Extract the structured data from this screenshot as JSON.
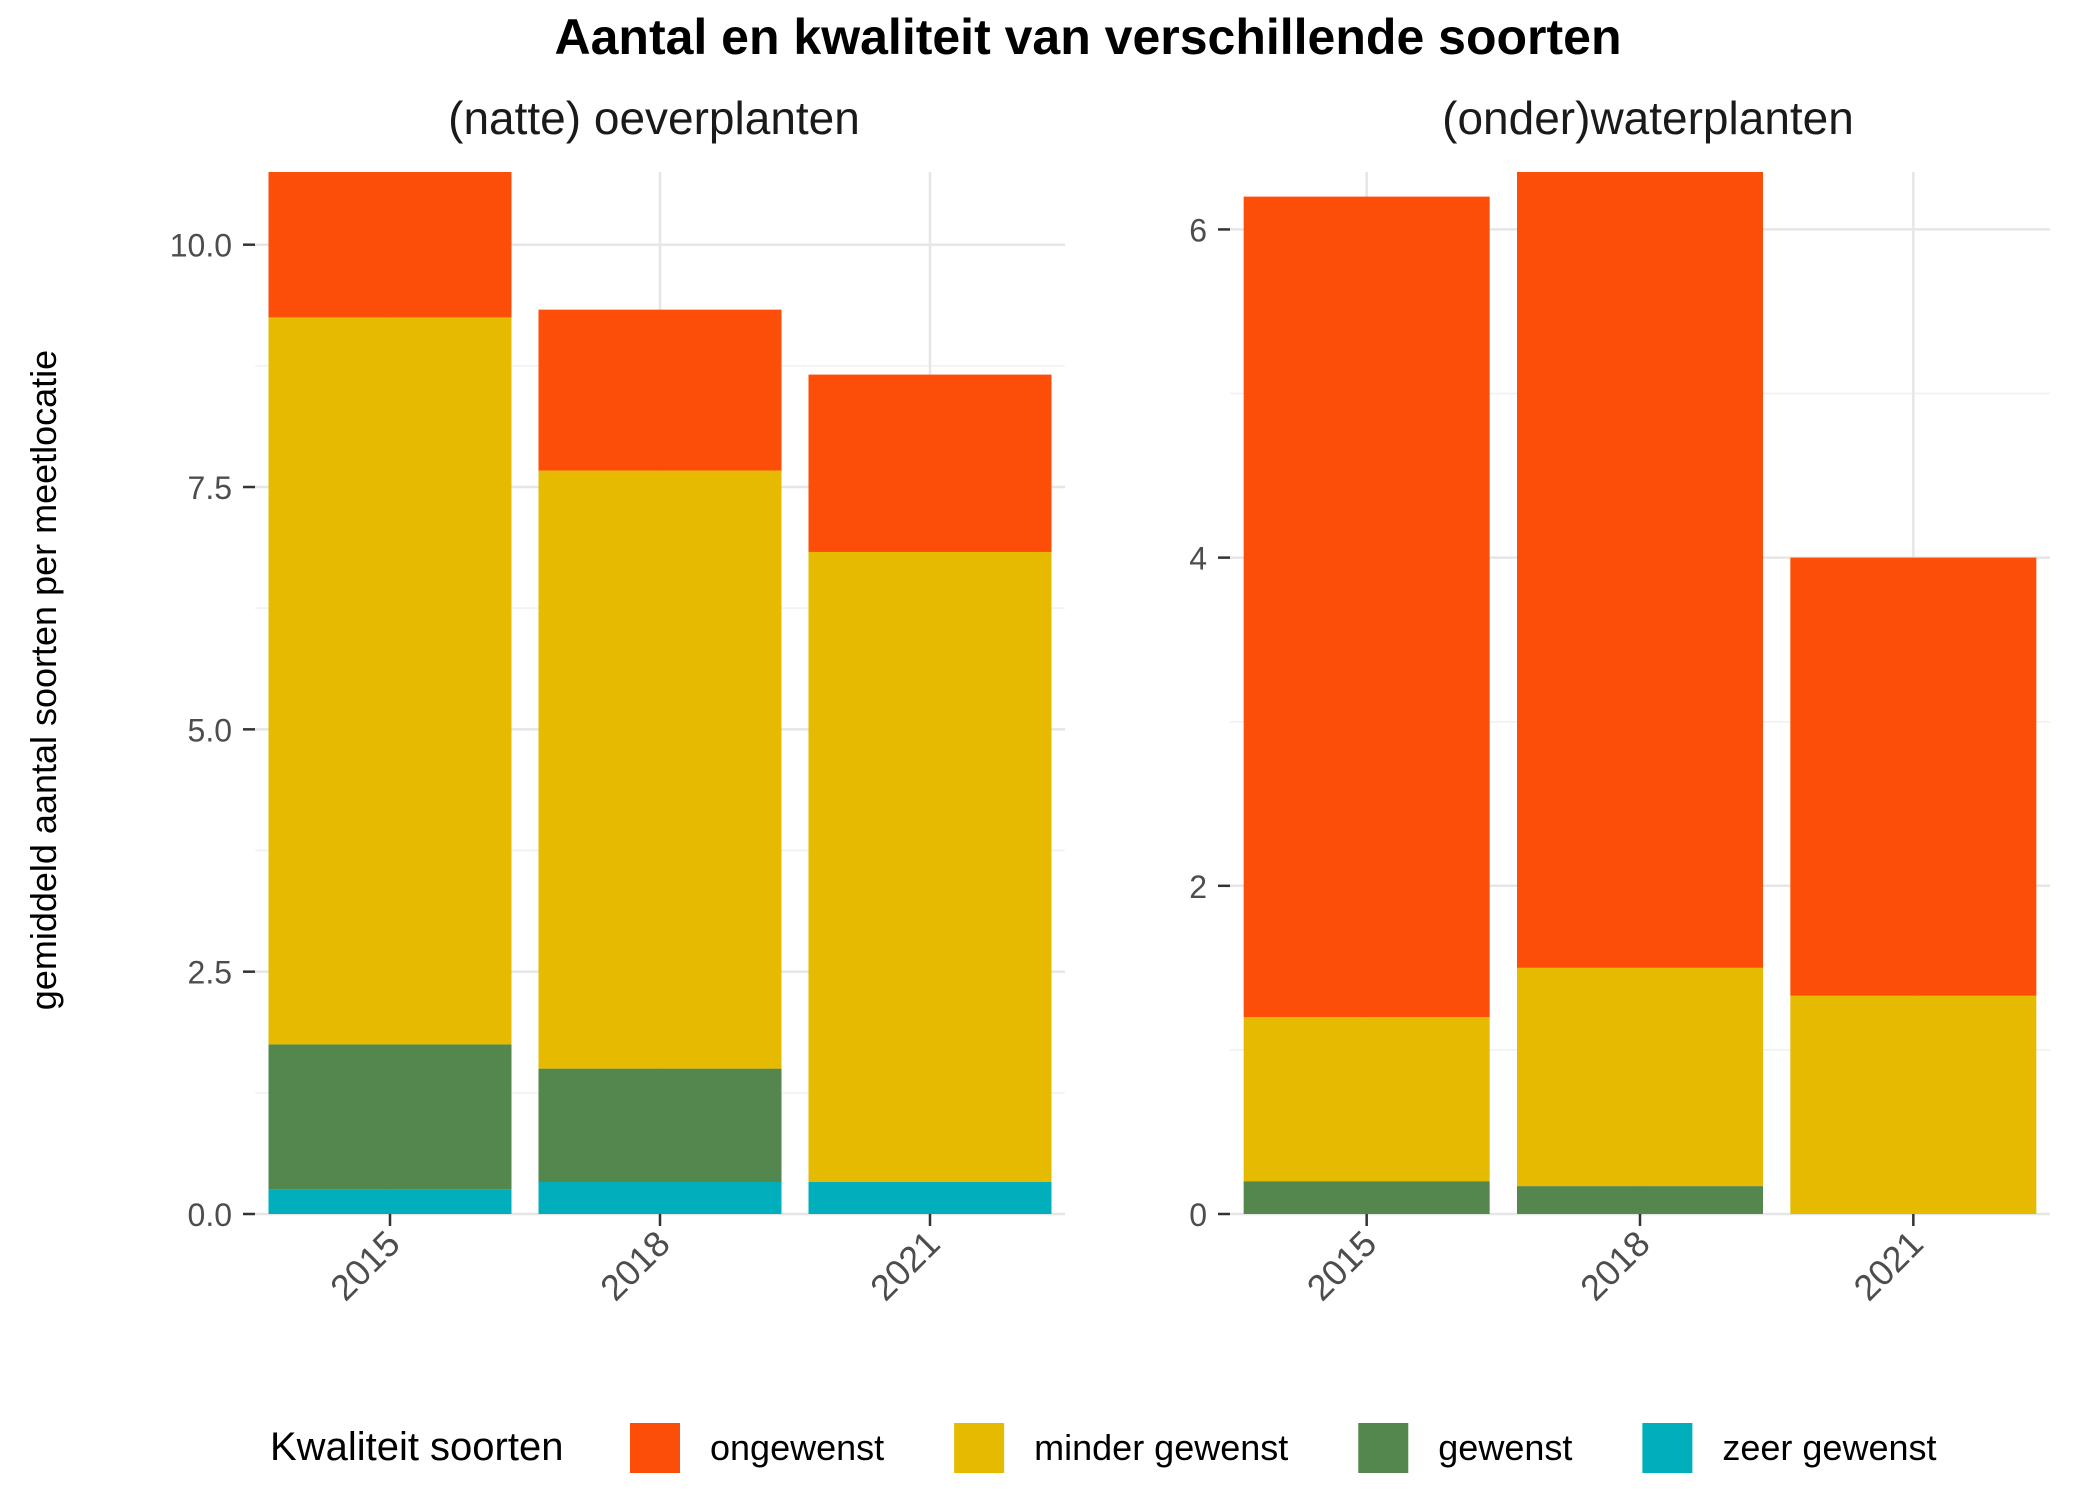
{
  "title": "Aantal en kwaliteit van verschillende soorten",
  "ylabel": "gemiddeld aantal soorten per meetlocatie",
  "legend": {
    "title": "Kwaliteit soorten",
    "placement": "bottom",
    "items": [
      {
        "label": "ongewenst",
        "color": "#FC4E08"
      },
      {
        "label": "minder gewenst",
        "color": "#E5BA00"
      },
      {
        "label": "gewenst",
        "color": "#53874E"
      },
      {
        "label": "zeer gewenst",
        "color": "#00AFBB"
      }
    ]
  },
  "chart_data": [
    {
      "type": "bar",
      "stacked": true,
      "title": "(natte) oeverplanten",
      "categories": [
        "2015",
        "2018",
        "2021"
      ],
      "ylim": [
        0,
        10.75
      ],
      "yticks": [
        0,
        2.5,
        5,
        7.5,
        10
      ],
      "ytick_labels": [
        "0.0",
        "2.5",
        "5.0",
        "7.5",
        "10.0"
      ],
      "grid": true,
      "series": [
        {
          "name": "zeer gewenst",
          "color": "#00AFBB",
          "values": [
            0.25,
            0.33,
            0.33
          ]
        },
        {
          "name": "gewenst",
          "color": "#53874E",
          "values": [
            1.5,
            1.17,
            0
          ]
        },
        {
          "name": "minder gewenst",
          "color": "#E5BA00",
          "values": [
            7.5,
            6.17,
            6.5
          ]
        },
        {
          "name": "ongewenst",
          "color": "#FC4E08",
          "values": [
            1.5,
            1.66,
            1.83
          ]
        }
      ]
    },
    {
      "type": "bar",
      "stacked": true,
      "title": "(onder)waterplanten",
      "categories": [
        "2015",
        "2018",
        "2021"
      ],
      "ylim": [
        0,
        6.35
      ],
      "yticks": [
        0,
        2,
        4,
        6
      ],
      "ytick_labels": [
        "0",
        "2",
        "4",
        "6"
      ],
      "grid": true,
      "series": [
        {
          "name": "zeer gewenst",
          "color": "#00AFBB",
          "values": [
            0,
            0,
            0
          ]
        },
        {
          "name": "gewenst",
          "color": "#53874E",
          "values": [
            0.2,
            0.17,
            0
          ]
        },
        {
          "name": "minder gewenst",
          "color": "#E5BA00",
          "values": [
            1.0,
            1.33,
            1.33
          ]
        },
        {
          "name": "ongewenst",
          "color": "#FC4E08",
          "values": [
            5.0,
            4.85,
            2.67
          ]
        }
      ]
    }
  ]
}
